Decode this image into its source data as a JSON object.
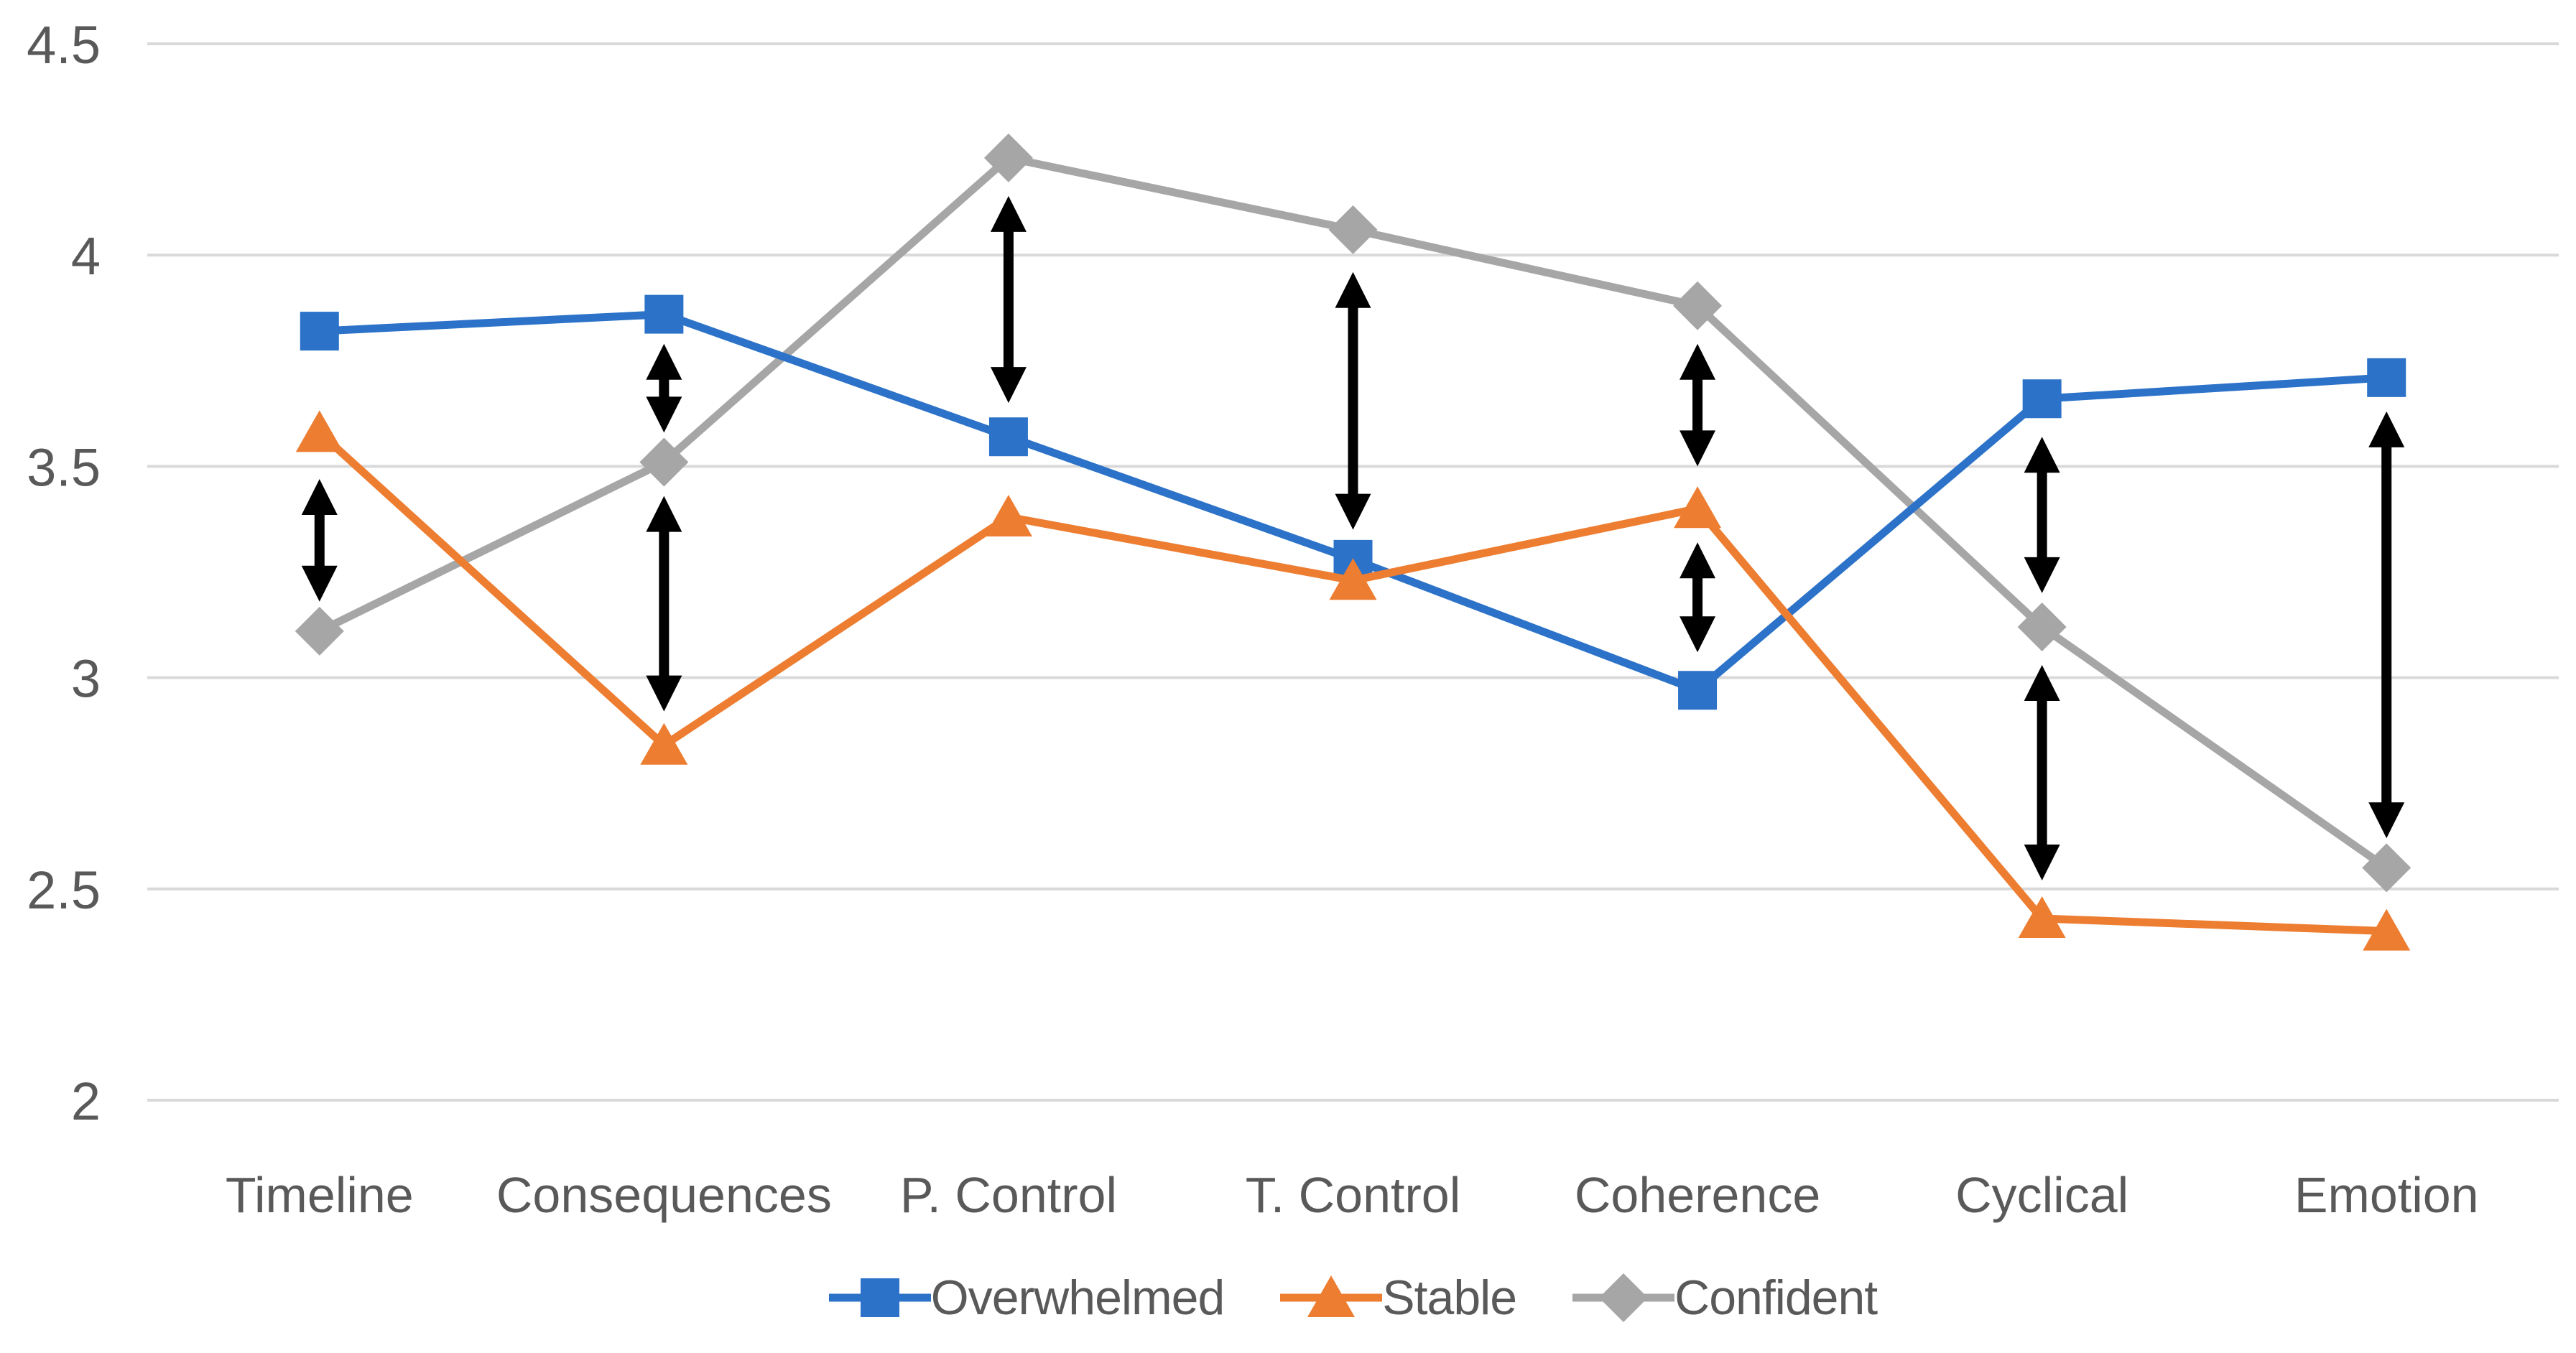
{
  "chart_data": {
    "type": "line",
    "title": "",
    "xlabel": "",
    "ylabel": "",
    "categories": [
      "Timeline",
      "Consequences",
      "P. Control",
      "T. Control",
      "Coherence",
      "Cyclical",
      "Emotion"
    ],
    "series": [
      {
        "name": "Overwhelmed",
        "marker": "square",
        "color": "#2B72C8",
        "values": [
          3.82,
          3.86,
          3.57,
          3.28,
          2.97,
          3.66,
          3.71
        ]
      },
      {
        "name": "Stable",
        "marker": "triangle",
        "color": "#ED7D31",
        "values": [
          3.58,
          2.84,
          3.38,
          3.23,
          3.4,
          2.43,
          2.4
        ]
      },
      {
        "name": "Confident",
        "marker": "diamond",
        "color": "#A6A6A6",
        "values": [
          3.11,
          3.51,
          4.23,
          4.06,
          3.88,
          3.12,
          2.55
        ]
      }
    ],
    "ylim": [
      2,
      4.5
    ],
    "y_tick_labels": [
      "4.5",
      "4",
      "3.5",
      "3",
      "2.5",
      "2"
    ],
    "y_tick_values": [
      4.5,
      4,
      3.5,
      3,
      2.5,
      2
    ],
    "grid": "horizontal",
    "legend_position": "bottom",
    "annotations": {
      "type": "double-headed-arrow",
      "color": "#000000",
      "items": [
        {
          "category": "Timeline",
          "from": 3.47,
          "to": 3.18
        },
        {
          "category": "Consequences",
          "from": 3.79,
          "to": 3.58
        },
        {
          "category": "Consequences",
          "from": 3.43,
          "to": 2.92
        },
        {
          "category": "P. Control",
          "from": 4.14,
          "to": 3.65
        },
        {
          "category": "T. Control",
          "from": 3.96,
          "to": 3.35
        },
        {
          "category": "Coherence",
          "from": 3.79,
          "to": 3.5
        },
        {
          "category": "Coherence",
          "from": 3.32,
          "to": 3.06
        },
        {
          "category": "Cyclical",
          "from": 3.57,
          "to": 3.2
        },
        {
          "category": "Cyclical",
          "from": 3.03,
          "to": 2.52
        },
        {
          "category": "Emotion",
          "from": 3.63,
          "to": 2.62
        }
      ]
    },
    "colors": {
      "gridline": "#D9D9D9",
      "tick_text": "#595959",
      "annotation": "#000000",
      "background": "#FFFFFF"
    }
  }
}
